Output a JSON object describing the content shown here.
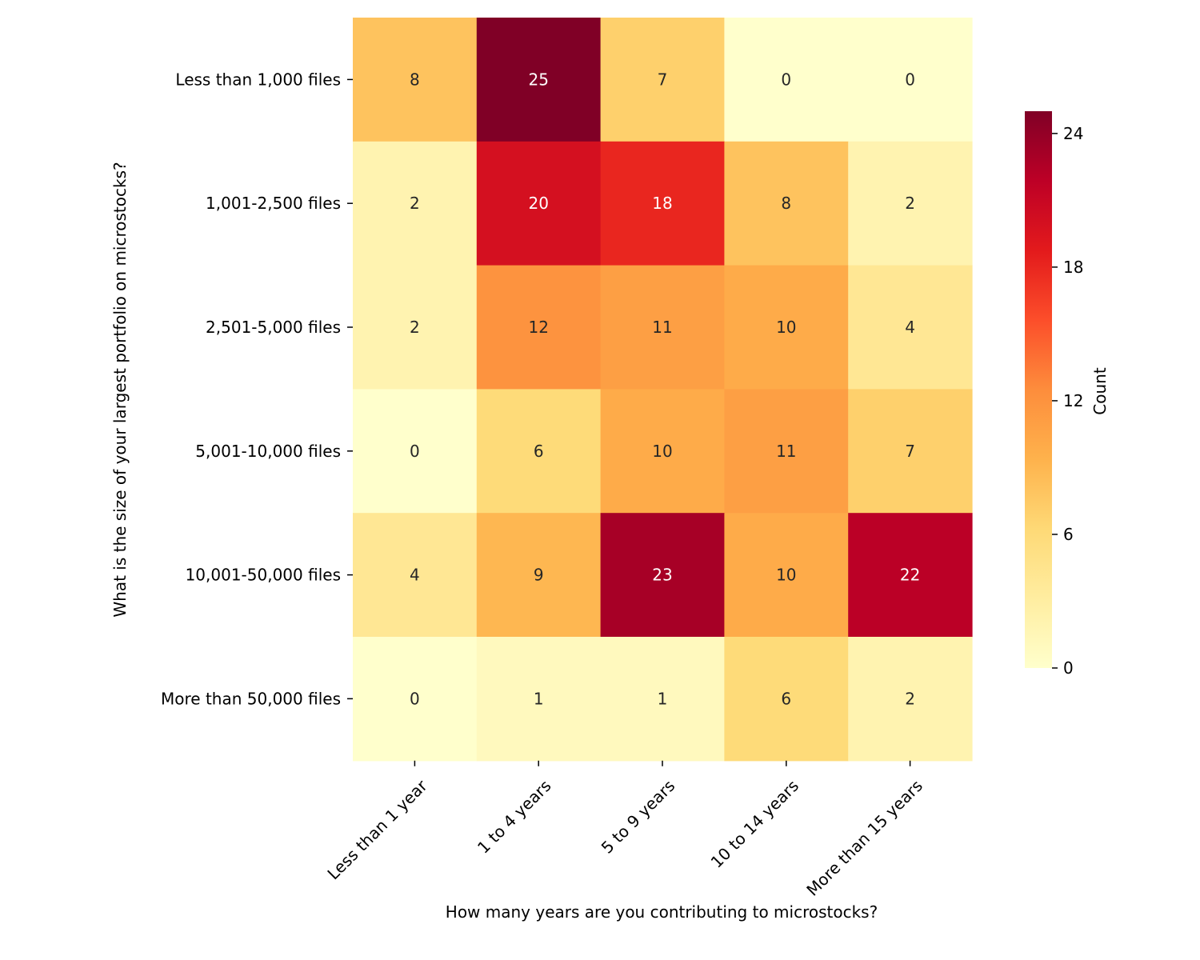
{
  "chart_data": {
    "type": "heatmap",
    "title": "",
    "xlabel": "How many years are you contributing to microstocks?",
    "ylabel": "What is the size of your largest portfolio on microstocks?",
    "x_categories": [
      "Less than 1 year",
      "1 to 4 years",
      "5 to 9 years",
      "10 to 14 years",
      "More than 15 years"
    ],
    "y_categories": [
      "Less than 1,000 files",
      "1,001-2,500 files",
      "2,501-5,000 files",
      "5,001-10,000 files",
      "10,001-50,000 files",
      "More than 50,000 files"
    ],
    "values": [
      [
        8,
        25,
        7,
        0,
        0
      ],
      [
        2,
        20,
        18,
        8,
        2
      ],
      [
        2,
        12,
        11,
        10,
        4
      ],
      [
        0,
        6,
        10,
        11,
        7
      ],
      [
        4,
        9,
        23,
        10,
        22
      ],
      [
        0,
        1,
        1,
        6,
        2
      ]
    ],
    "colormap": "YlOrRd",
    "colorbar": {
      "label": "Count",
      "range": [
        0,
        25
      ],
      "ticks": [
        0,
        6,
        12,
        18,
        24
      ]
    }
  }
}
